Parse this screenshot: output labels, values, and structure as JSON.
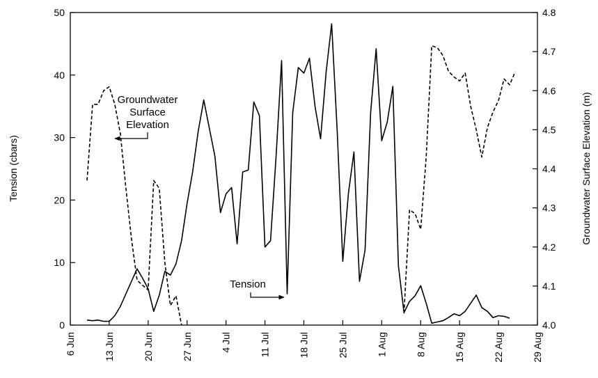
{
  "chart_data": {
    "type": "line",
    "x_ticks": [
      "6 Jun",
      "13 Jun",
      "20 Jun",
      "27 Jun",
      "4 Jul",
      "11 Jul",
      "18 Jul",
      "25 Jul",
      "1 Aug",
      "8 Aug",
      "15 Aug",
      "22 Aug",
      "29 Aug"
    ],
    "x_range": [
      "6 Jun",
      "29 Aug"
    ],
    "y_left": {
      "label": "Tension (cbars)",
      "lim": [
        0,
        50
      ],
      "ticks": [
        "0",
        "10",
        "20",
        "30",
        "40",
        "50"
      ]
    },
    "y_right": {
      "label": "Groundwater Surface Elevation (m)",
      "lim": [
        4.0,
        4.8
      ],
      "ticks": [
        "4.0",
        "4.1",
        "4.2",
        "4.3",
        "4.4",
        "4.5",
        "4.6",
        "4.7",
        "4.8"
      ]
    },
    "grid": false,
    "annotations": {
      "groundwater": [
        "Groundwater",
        "Surface",
        "Elevation"
      ],
      "tension": "Tension"
    },
    "series": [
      {
        "axis": "left",
        "style": "solid",
        "points": [
          [
            "9 Jun",
            0.8
          ],
          [
            "10 Jun",
            0.7
          ],
          [
            "11 Jun",
            0.8
          ],
          [
            "12 Jun",
            0.6
          ],
          [
            "13 Jun",
            0.6
          ],
          [
            "14 Jun",
            1.5
          ],
          [
            "15 Jun",
            3
          ],
          [
            "16 Jun",
            5
          ],
          [
            "17 Jun",
            7
          ],
          [
            "18 Jun",
            9
          ],
          [
            "19 Jun",
            7.5
          ],
          [
            "20 Jun",
            5.8
          ],
          [
            "21 Jun",
            2.2
          ],
          [
            "22 Jun",
            4.8
          ],
          [
            "23 Jun",
            8.6
          ],
          [
            "24 Jun",
            8
          ],
          [
            "25 Jun",
            9.8
          ],
          [
            "26 Jun",
            13.5
          ],
          [
            "27 Jun",
            19.5
          ],
          [
            "28 Jun",
            24.5
          ],
          [
            "29 Jun",
            31
          ],
          [
            "30 Jun",
            36
          ],
          [
            "1 Jul",
            31.5
          ],
          [
            "2 Jul",
            27
          ],
          [
            "3 Jul",
            18
          ],
          [
            "4 Jul",
            21
          ],
          [
            "5 Jul",
            22
          ],
          [
            "6 Jul",
            13
          ],
          [
            "7 Jul",
            24.5
          ],
          [
            "8 Jul",
            24.8
          ],
          [
            "9 Jul",
            35.7
          ],
          [
            "10 Jul",
            33.5
          ],
          [
            "11 Jul",
            12.5
          ],
          [
            "12 Jul",
            13.5
          ],
          [
            "13 Jul",
            27
          ],
          [
            "14 Jul",
            42.3
          ],
          [
            "15 Jul",
            5
          ],
          [
            "16 Jul",
            34
          ],
          [
            "17 Jul",
            41.2
          ],
          [
            "18 Jul",
            40.3
          ],
          [
            "19 Jul",
            42.7
          ],
          [
            "20 Jul",
            35
          ],
          [
            "21 Jul",
            29.8
          ],
          [
            "22 Jul",
            40.5
          ],
          [
            "23 Jul",
            48.2
          ],
          [
            "24 Jul",
            31
          ],
          [
            "25 Jul",
            10.2
          ],
          [
            "26 Jul",
            21
          ],
          [
            "27 Jul",
            27.7
          ],
          [
            "28 Jul",
            7
          ],
          [
            "29 Jul",
            12
          ],
          [
            "30 Jul",
            34
          ],
          [
            "31 Jul",
            44.2
          ],
          [
            "1 Aug",
            29.5
          ],
          [
            "2 Aug",
            32.5
          ],
          [
            "3 Aug",
            38.2
          ],
          [
            "4 Aug",
            9.5
          ],
          [
            "5 Aug",
            2
          ],
          [
            "6 Aug",
            3.8
          ],
          [
            "7 Aug",
            4.7
          ],
          [
            "8 Aug",
            6.3
          ],
          [
            "9 Aug",
            3.5
          ],
          [
            "10 Aug",
            0.3
          ],
          [
            "11 Aug",
            0.5
          ],
          [
            "12 Aug",
            0.7
          ],
          [
            "13 Aug",
            1.2
          ],
          [
            "14 Aug",
            1.8
          ],
          [
            "15 Aug",
            1.5
          ],
          [
            "16 Aug",
            2.2
          ],
          [
            "17 Aug",
            3.5
          ],
          [
            "18 Aug",
            4.8
          ],
          [
            "19 Aug",
            2.8
          ],
          [
            "20 Aug",
            2.2
          ],
          [
            "21 Aug",
            1.2
          ],
          [
            "22 Aug",
            1.5
          ],
          [
            "23 Aug",
            1.4
          ],
          [
            "24 Aug",
            1.1
          ]
        ]
      },
      {
        "axis": "right",
        "style": "dashed",
        "segments": [
          [
            [
              "9 Jun",
              4.37
            ],
            [
              "10 Jun",
              4.565
            ],
            [
              "11 Jun",
              4.565
            ],
            [
              "12 Jun",
              4.6
            ],
            [
              "13 Jun",
              4.61
            ],
            [
              "14 Jun",
              4.565
            ],
            [
              "15 Jun",
              4.49
            ],
            [
              "16 Jun",
              4.35
            ],
            [
              "17 Jun",
              4.22
            ],
            [
              "18 Jun",
              4.115
            ],
            [
              "19 Jun",
              4.102
            ],
            [
              "20 Jun",
              4.09
            ],
            [
              "21 Jun",
              4.37
            ],
            [
              "22 Jun",
              4.35
            ],
            [
              "23 Jun",
              4.16
            ],
            [
              "24 Jun",
              4.05
            ],
            [
              "25 Jun",
              4.075
            ],
            [
              "26 Jun",
              4.0
            ]
          ],
          [
            [
              "5 Aug",
              4.03
            ],
            [
              "6 Aug",
              4.295
            ],
            [
              "7 Aug",
              4.285
            ],
            [
              "8 Aug",
              4.245
            ],
            [
              "9 Aug",
              4.43
            ],
            [
              "10 Aug",
              4.715
            ],
            [
              "11 Aug",
              4.71
            ],
            [
              "12 Aug",
              4.69
            ],
            [
              "13 Aug",
              4.65
            ],
            [
              "14 Aug",
              4.635
            ],
            [
              "15 Aug",
              4.625
            ],
            [
              "16 Aug",
              4.645
            ],
            [
              "17 Aug",
              4.56
            ],
            [
              "18 Aug",
              4.5
            ],
            [
              "19 Aug",
              4.43
            ],
            [
              "20 Aug",
              4.505
            ],
            [
              "21 Aug",
              4.545
            ],
            [
              "22 Aug",
              4.575
            ],
            [
              "23 Aug",
              4.63
            ],
            [
              "24 Aug",
              4.615
            ],
            [
              "25 Aug",
              4.648
            ]
          ]
        ]
      }
    ]
  }
}
